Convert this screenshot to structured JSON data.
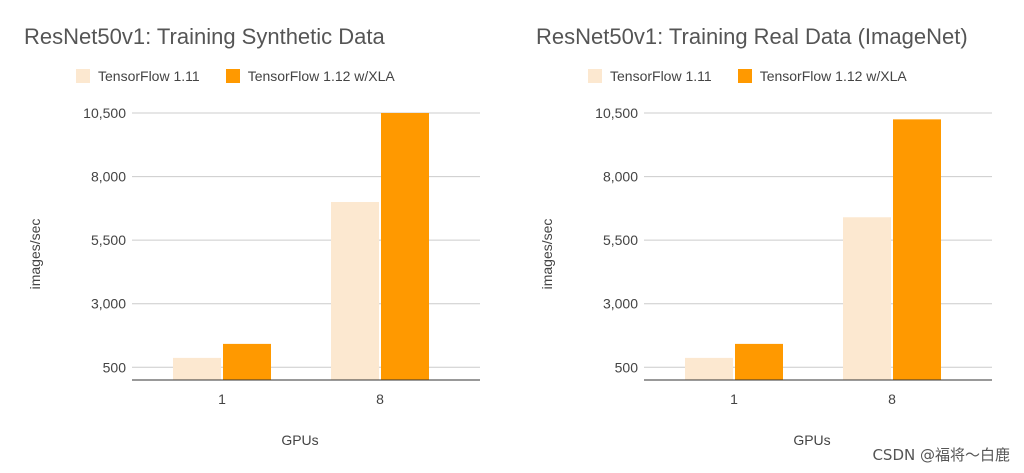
{
  "chart_data": [
    {
      "type": "bar",
      "title": "ResNet50v1: Training Synthetic Data",
      "xlabel": "GPUs",
      "ylabel": "images/sec",
      "categories": [
        "1",
        "8"
      ],
      "series": [
        {
          "name": "TensorFlow 1.11",
          "color": "#fce8d0",
          "values": [
            870,
            7000
          ]
        },
        {
          "name": "TensorFlow 1.12 w/XLA",
          "color": "#ff9900",
          "values": [
            1420,
            10500
          ]
        }
      ],
      "yticks": [
        500,
        3000,
        5500,
        8000,
        10500
      ],
      "ytick_labels": [
        "500",
        "3,000",
        "5,500",
        "8,000",
        "10,500"
      ],
      "ylim": [
        0,
        10500
      ],
      "grid": true,
      "legend_position": "top"
    },
    {
      "type": "bar",
      "title": "ResNet50v1: Training Real Data (ImageNet)",
      "xlabel": "GPUs",
      "ylabel": "images/sec",
      "categories": [
        "1",
        "8"
      ],
      "series": [
        {
          "name": "TensorFlow 1.11",
          "color": "#fce8d0",
          "values": [
            870,
            6400
          ]
        },
        {
          "name": "TensorFlow 1.12 w/XLA",
          "color": "#ff9900",
          "values": [
            1420,
            10250
          ]
        }
      ],
      "yticks": [
        500,
        3000,
        5500,
        8000,
        10500
      ],
      "ytick_labels": [
        "500",
        "3,000",
        "5,500",
        "8,000",
        "10,500"
      ],
      "ylim": [
        0,
        10500
      ],
      "grid": true,
      "legend_position": "top"
    }
  ],
  "watermark": "CSDN @福将～白鹿"
}
